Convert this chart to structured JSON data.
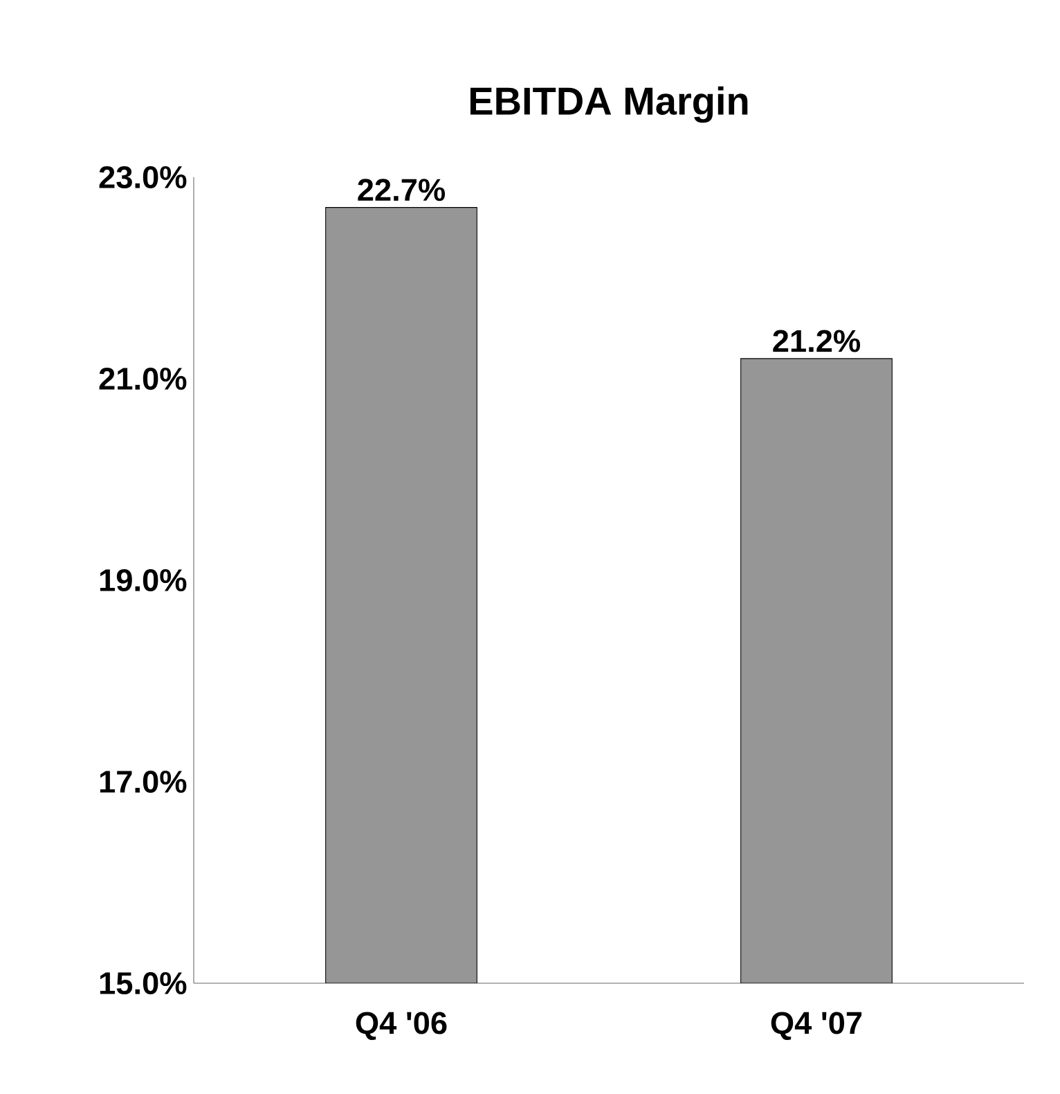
{
  "chart_data": {
    "type": "bar",
    "title": "EBITDA Margin",
    "categories": [
      "Q4 '06",
      "Q4 '07"
    ],
    "values": [
      22.7,
      21.2
    ],
    "value_labels": [
      "22.7%",
      "21.2%"
    ],
    "color": "#969696",
    "ylim": [
      15,
      23
    ],
    "yticks": [
      {
        "value": 15,
        "label": "15.0%"
      },
      {
        "value": 17,
        "label": "17.0%"
      },
      {
        "value": 19,
        "label": "19.0%"
      },
      {
        "value": 21,
        "label": "21.0%"
      },
      {
        "value": 23,
        "label": "23.0%"
      }
    ]
  }
}
